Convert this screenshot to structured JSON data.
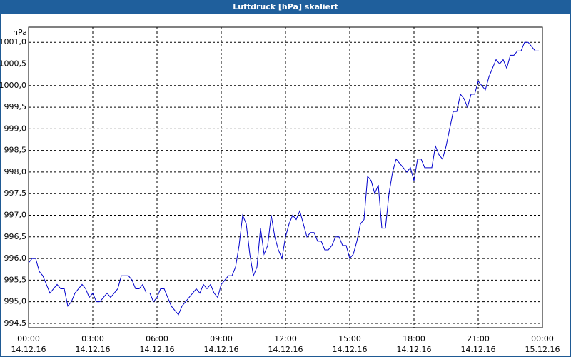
{
  "chart_data": {
    "type": "line",
    "title": "Luftdruck [hPa] skaliert",
    "y_label": "hPa",
    "color": "#0000cc",
    "grid": true,
    "x": [
      0,
      10,
      20,
      30,
      40,
      50,
      60,
      70,
      80,
      90,
      100,
      110,
      120,
      130,
      140,
      150,
      160,
      170,
      180,
      190,
      200,
      210,
      220,
      230,
      240,
      250,
      260,
      270,
      280,
      290,
      300,
      310,
      320,
      330,
      340,
      350,
      360,
      370,
      380,
      390,
      400,
      410,
      420,
      430,
      440,
      450,
      460,
      470,
      480,
      490,
      500,
      510,
      520,
      530,
      540,
      550,
      560,
      570,
      580,
      590,
      600,
      610,
      620,
      630,
      640,
      650,
      660,
      670,
      680,
      690,
      700,
      710,
      720,
      730,
      740,
      750,
      760,
      770,
      780,
      790,
      800,
      810,
      820,
      830,
      840,
      850,
      860,
      870,
      880,
      890,
      900,
      910,
      920,
      930,
      940,
      950,
      960,
      970,
      980,
      990,
      1000,
      1010,
      1020,
      1030,
      1040,
      1050,
      1060,
      1070,
      1080,
      1090,
      1100,
      1110,
      1120,
      1130,
      1140,
      1150,
      1160,
      1170,
      1180,
      1190,
      1200,
      1210,
      1220,
      1230,
      1240,
      1250,
      1260,
      1270,
      1280,
      1290,
      1300,
      1310,
      1320,
      1330,
      1340,
      1350,
      1360,
      1370,
      1380,
      1390,
      1400,
      1410,
      1420,
      1430
    ],
    "values": [
      995.9,
      996.0,
      996.0,
      995.7,
      995.6,
      995.4,
      995.2,
      995.3,
      995.4,
      995.3,
      995.3,
      994.9,
      995.0,
      995.2,
      995.3,
      995.4,
      995.3,
      995.1,
      995.2,
      995.0,
      995.0,
      995.1,
      995.2,
      995.1,
      995.2,
      995.3,
      995.6,
      995.6,
      995.6,
      995.5,
      995.3,
      995.3,
      995.4,
      995.2,
      995.2,
      995.0,
      995.1,
      995.3,
      995.3,
      995.1,
      994.9,
      994.8,
      994.7,
      994.9,
      995.0,
      995.1,
      995.2,
      995.3,
      995.2,
      995.4,
      995.3,
      995.4,
      995.2,
      995.1,
      995.4,
      995.5,
      995.6,
      995.6,
      995.8,
      996.3,
      997.0,
      996.8,
      996.1,
      995.6,
      995.8,
      996.7,
      996.1,
      996.3,
      997.0,
      996.5,
      996.2,
      996.0,
      996.5,
      996.8,
      997.0,
      996.9,
      997.1,
      996.8,
      996.5,
      996.6,
      996.6,
      996.4,
      996.4,
      996.2,
      996.2,
      996.3,
      996.5,
      996.5,
      996.3,
      996.3,
      996.0,
      996.1,
      996.4,
      996.8,
      996.9,
      997.9,
      997.8,
      997.5,
      997.7,
      996.7,
      996.7,
      997.5,
      998.0,
      998.3,
      998.2,
      998.1,
      998.0,
      998.1,
      997.8,
      998.3,
      998.3,
      998.1,
      998.1,
      998.1,
      998.6,
      998.4,
      998.3,
      998.6,
      999.0,
      999.4,
      999.4,
      999.8,
      999.7,
      999.5,
      999.8,
      999.8,
      1000.1,
      1000.0,
      999.9,
      1000.2,
      1000.4,
      1000.6,
      1000.5,
      1000.6,
      1000.4,
      1000.7,
      1000.7,
      1000.8,
      1000.8,
      1001.0,
      1001.0,
      1000.9,
      1000.8,
      1000.8
    ],
    "xlim": [
      0,
      1440
    ],
    "xticks": [
      {
        "value": 0,
        "label": "00:00",
        "date": "14.12.16"
      },
      {
        "value": 180,
        "label": "03:00",
        "date": "14.12.16"
      },
      {
        "value": 360,
        "label": "06:00",
        "date": "14.12.16"
      },
      {
        "value": 540,
        "label": "09:00",
        "date": "14.12.16"
      },
      {
        "value": 720,
        "label": "12:00",
        "date": "14.12.16"
      },
      {
        "value": 900,
        "label": "15:00",
        "date": "14.12.16"
      },
      {
        "value": 1080,
        "label": "18:00",
        "date": "14.12.16"
      },
      {
        "value": 1260,
        "label": "21:00",
        "date": "14.12.16"
      },
      {
        "value": 1440,
        "label": "00:00",
        "date": "15.12.16"
      }
    ],
    "ylim": [
      994.4,
      1001.35
    ],
    "yticks": [
      {
        "value": 994.5,
        "label": "994,5"
      },
      {
        "value": 995,
        "label": "995,0"
      },
      {
        "value": 995.5,
        "label": "995,5"
      },
      {
        "value": 996,
        "label": "996,0"
      },
      {
        "value": 996.5,
        "label": "996,5"
      },
      {
        "value": 997,
        "label": "997,0"
      },
      {
        "value": 997.5,
        "label": "997,5"
      },
      {
        "value": 998,
        "label": "998,0"
      },
      {
        "value": 998.5,
        "label": "998,5"
      },
      {
        "value": 999,
        "label": "999,0"
      },
      {
        "value": 999.5,
        "label": "999,5"
      },
      {
        "value": 1000,
        "label": "1000,0"
      },
      {
        "value": 1000.5,
        "label": "1000,5"
      },
      {
        "value": 1001,
        "label": "1001,0"
      }
    ]
  }
}
